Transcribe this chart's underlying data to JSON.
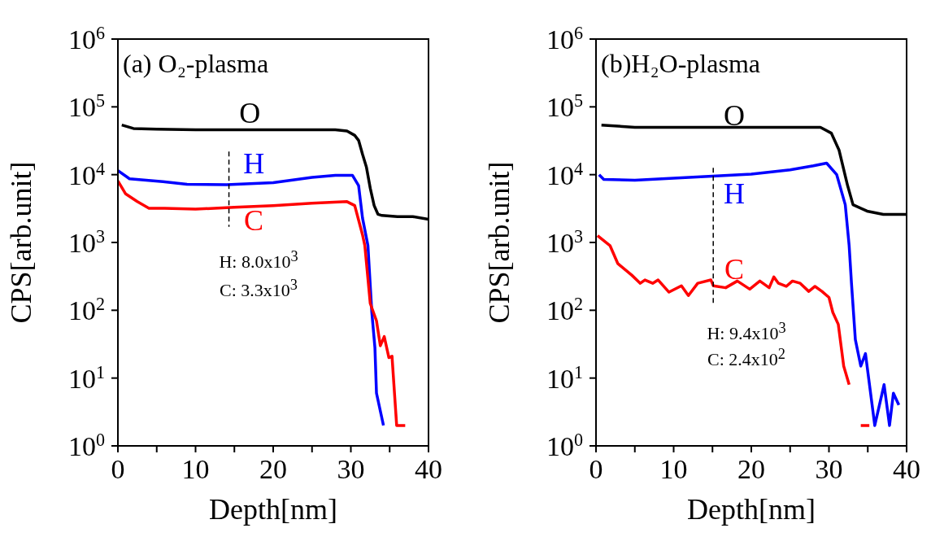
{
  "chart_data": [
    {
      "type": "line",
      "title": "(a) O₂-plasma",
      "xlabel": "Depth[nm]",
      "ylabel": "CPS[arb.unit]",
      "log": "y",
      "xlim": [
        0,
        40
      ],
      "xticks": [
        0,
        {
          "value": 5,
          "label": null
        },
        10,
        {
          "value": 15,
          "label": null
        },
        20,
        {
          "value": 25,
          "label": null
        },
        30,
        {
          "value": 35,
          "label": null
        },
        40
      ],
      "ylim": [
        1,
        1000000
      ],
      "yticks": [
        {
          "value": 1,
          "label": "10$^{0}$"
        },
        {
          "value": 10,
          "label": "10$^{1}$"
        },
        {
          "value": 100,
          "label": "10$^{2}$"
        },
        {
          "value": 1000,
          "label": "10$^{3}$"
        },
        {
          "value": 10000,
          "label": "10$^{4}$"
        },
        {
          "value": 100000,
          "label": "10$^{5}$"
        },
        {
          "value": 1000000,
          "label": "10$^{6}$"
        }
      ],
      "series": [
        {
          "name": "O",
          "color": "#000000",
          "x": [
            0.5,
            2,
            5,
            10,
            15,
            20,
            25,
            28,
            29.5,
            30.5,
            31,
            31.5,
            32,
            32.5,
            33,
            33.5,
            34,
            36,
            38,
            40
          ],
          "values": [
            54000,
            48000,
            47000,
            46000,
            46000,
            46000,
            46000,
            46000,
            44000,
            38000,
            32000,
            20000,
            13000,
            6300,
            3500,
            2600,
            2500,
            2400,
            2400,
            2200
          ]
        },
        {
          "name": "H",
          "color": "#0000ff",
          "x": [
            0,
            1.5,
            5.8,
            8.9,
            14,
            20,
            25,
            28,
            30.2,
            31,
            31.5,
            32.2,
            32.7,
            33.1,
            33.3,
            34.2
          ],
          "values": [
            11500,
            8700,
            7900,
            7200,
            7100,
            7600,
            9100,
            9800,
            9800,
            6900,
            2300,
            900,
            93,
            28,
            6,
            2
          ]
        },
        {
          "name": "C",
          "color": "#ff0000",
          "x": [
            0,
            1,
            2.5,
            4,
            6,
            10,
            15,
            20,
            25,
            29.5,
            30.5,
            31.5,
            31.8,
            32.5,
            33.3,
            33.8,
            34.3,
            34.9,
            35.3,
            35.9,
            37
          ],
          "values": [
            8100,
            5200,
            4000,
            3200,
            3200,
            3100,
            3300,
            3500,
            3800,
            4000,
            3500,
            1300,
            900,
            126,
            70,
            30,
            41,
            20,
            21,
            2,
            2
          ]
        },
        {
          "color": "#000000",
          "line_style": "dashed",
          "x": [
            14.3,
            14.3
          ],
          "values": [
            22000,
            1700
          ]
        }
      ],
      "annotations": [
        "H: 8.0x10$^{3}$",
        "C: 3.3x10$^{3}$"
      ]
    },
    {
      "type": "line",
      "title": "(b)H₂O-plasma",
      "xlabel": "Depth[nm]",
      "ylabel": "CPS[arb.unit]",
      "log": "y",
      "xlim": [
        0,
        40
      ],
      "xticks": [
        0,
        {
          "value": 5,
          "label": null
        },
        10,
        {
          "value": 15,
          "label": null
        },
        20,
        {
          "value": 25,
          "label": null
        },
        30,
        {
          "value": 35,
          "label": null
        },
        40
      ],
      "ylim": [
        1,
        1000000
      ],
      "yticks": [
        {
          "value": 1,
          "label": "10$^{0}$"
        },
        {
          "value": 10,
          "label": "10$^{1}$"
        },
        {
          "value": 100,
          "label": "10$^{2}$"
        },
        {
          "value": 1000,
          "label": "10$^{3}$"
        },
        {
          "value": 10000,
          "label": "10$^{4}$"
        },
        {
          "value": 100000,
          "label": "10$^{5}$"
        },
        {
          "value": 1000000,
          "label": "10$^{6}$"
        }
      ],
      "series": [
        {
          "name": "O",
          "color": "#000000",
          "x": [
            0.7,
            5,
            10,
            15,
            20,
            25,
            28.9,
            30.3,
            31.3,
            32.4,
            33.1,
            34.9,
            37,
            40
          ],
          "values": [
            54000,
            50000,
            50000,
            50000,
            50000,
            50000,
            50000,
            41000,
            23000,
            6900,
            3600,
            2900,
            2600,
            2600
          ]
        },
        {
          "name": "H",
          "color": "#0000ff",
          "x": [
            0.4,
            1,
            5,
            10,
            15,
            20,
            25,
            28,
            29.7,
            31,
            32.1,
            32.6,
            32.9,
            33.4,
            34.1,
            34.7,
            35.9,
            37.1,
            37.8,
            38.3,
            39
          ],
          "values": [
            10000,
            8500,
            8300,
            8900,
            9500,
            10200,
            11800,
            13500,
            14800,
            10000,
            3600,
            900,
            250,
            37,
            15,
            23,
            2,
            8,
            2,
            6,
            4
          ]
        },
        {
          "name": "C",
          "color": "#ff0000",
          "x": [
            0.2,
            1.8,
            2.8,
            4.6,
            5.7,
            6.3,
            7.3,
            8,
            9.4,
            11,
            11.9,
            13.1,
            14.8,
            15.1,
            16.7,
            18.2,
            19.8,
            21.1,
            22.3,
            22.9,
            23.5,
            24.5,
            25.3,
            26.3,
            27.4,
            28.2,
            29.1,
            30,
            30.5,
            31.2,
            31.9,
            32.6,
            33.5,
            34.1,
            35.2
          ],
          "values": [
            1260,
            900,
            490,
            330,
            250,
            280,
            250,
            280,
            185,
            230,
            165,
            250,
            280,
            230,
            215,
            270,
            205,
            270,
            215,
            310,
            250,
            225,
            270,
            250,
            190,
            225,
            190,
            155,
            93,
            62,
            15,
            8,
            null,
            2,
            2
          ]
        },
        {
          "color": "#000000",
          "line_style": "dashed",
          "x": [
            15.1,
            15.1
          ],
          "values": [
            12600,
            120
          ]
        }
      ],
      "annotations": [
        "H: 9.4x10$^{3}$",
        "C: 2.4x10$^{2}$"
      ]
    }
  ]
}
